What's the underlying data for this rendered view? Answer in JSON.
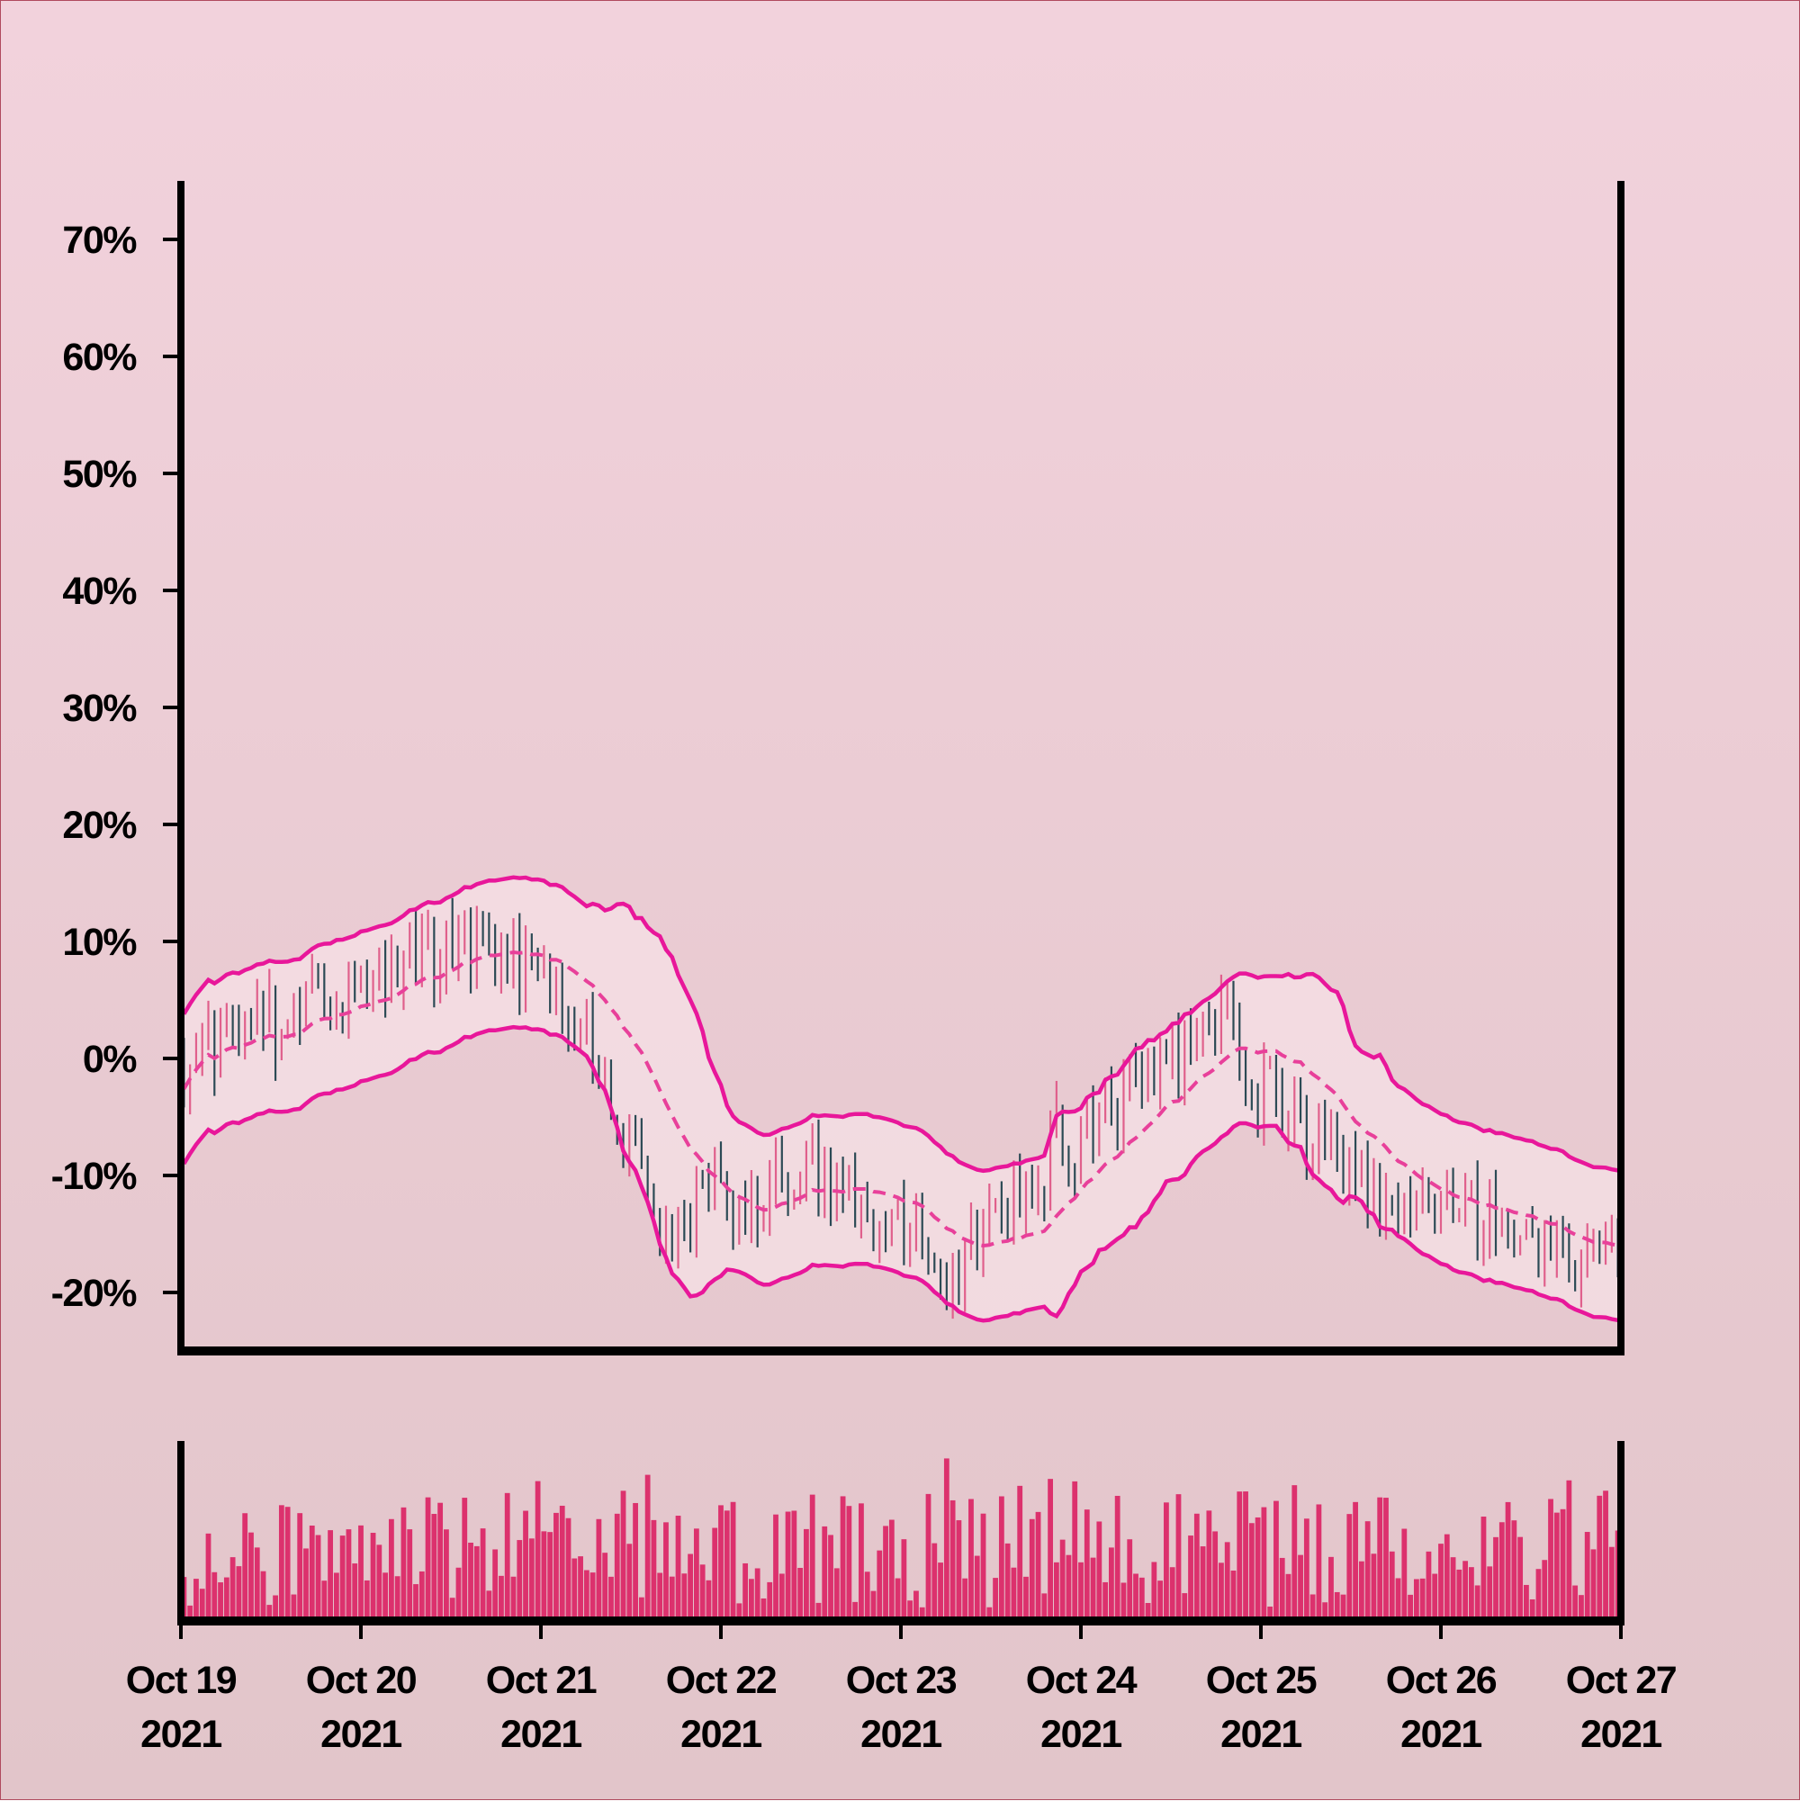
{
  "colors": {
    "background_top": "#f2d2dc",
    "background_bottom": "#e2c5ca",
    "up_candle": "#e0608c",
    "down_candle": "#2c4a55",
    "band_line": "#e8179a",
    "band_fill": "#f6e0e6",
    "moving_average": "#e8409a",
    "volume_bar": "#dc316d",
    "axis": "#000000"
  },
  "chart_data": [
    {
      "type": "candlestick",
      "indicator": "bollinger-bands",
      "x_range": [
        "2021-10-19",
        "2021-10-27"
      ],
      "ylim": [
        -25,
        75
      ],
      "y_ticks": [
        -20,
        -10,
        0,
        10,
        20,
        30,
        40,
        50,
        60,
        70
      ],
      "y_tick_labels": [
        "-20%",
        "-10%",
        "0%",
        "10%",
        "20%",
        "30%",
        "40%",
        "50%",
        "60%",
        "70%"
      ],
      "grid": false,
      "trend_anchors": [
        {
          "day": 0.0,
          "value": 0
        },
        {
          "day": 0.5,
          "value": 3
        },
        {
          "day": 1.0,
          "value": 7
        },
        {
          "day": 1.4,
          "value": 9
        },
        {
          "day": 1.9,
          "value": 8
        },
        {
          "day": 2.2,
          "value": 2
        },
        {
          "day": 2.5,
          "value": -7
        },
        {
          "day": 2.7,
          "value": -15
        },
        {
          "day": 2.9,
          "value": -12
        },
        {
          "day": 3.2,
          "value": -12
        },
        {
          "day": 3.5,
          "value": -11
        },
        {
          "day": 4.0,
          "value": -14
        },
        {
          "day": 4.3,
          "value": -18
        },
        {
          "day": 4.55,
          "value": -12
        },
        {
          "day": 5.0,
          "value": -6
        },
        {
          "day": 5.5,
          "value": 0
        },
        {
          "day": 5.8,
          "value": 3
        },
        {
          "day": 6.0,
          "value": -3
        },
        {
          "day": 6.35,
          "value": -8
        },
        {
          "day": 6.7,
          "value": -11
        },
        {
          "day": 7.2,
          "value": -13
        },
        {
          "day": 7.6,
          "value": -17
        },
        {
          "day": 8.0,
          "value": -16
        }
      ]
    },
    {
      "type": "bar",
      "role": "volume"
    }
  ],
  "x_axis": {
    "ticks": [
      {
        "month_day": "Oct 19",
        "year": "2021"
      },
      {
        "month_day": "Oct 20",
        "year": "2021"
      },
      {
        "month_day": "Oct 21",
        "year": "2021"
      },
      {
        "month_day": "Oct 22",
        "year": "2021"
      },
      {
        "month_day": "Oct 23",
        "year": "2021"
      },
      {
        "month_day": "Oct 24",
        "year": "2021"
      },
      {
        "month_day": "Oct 25",
        "year": "2021"
      },
      {
        "month_day": "Oct 26",
        "year": "2021"
      },
      {
        "month_day": "Oct 27",
        "year": "2021"
      }
    ]
  }
}
